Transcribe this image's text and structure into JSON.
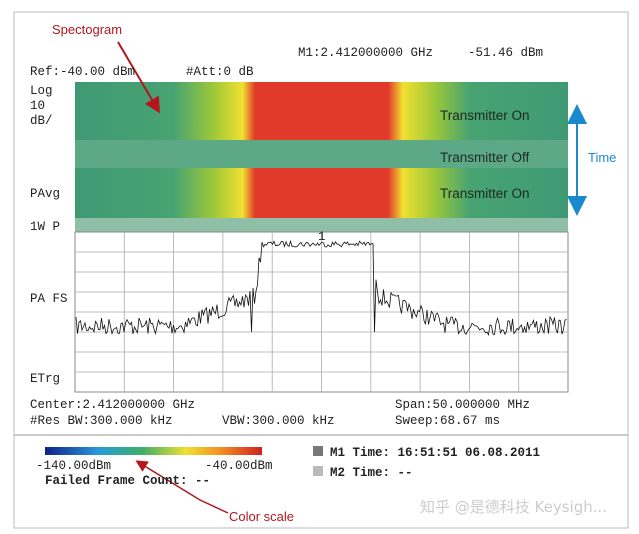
{
  "annotations": {
    "spectrogram": "Spectogram",
    "color_scale": "Color scale",
    "time": "Time"
  },
  "header": {
    "marker": "M1:2.412000000 GHz",
    "marker_level": "-51.46 dBm",
    "ref": "Ref:-40.00 dBm",
    "att": "#Att:0 dB"
  },
  "side_labels": {
    "log": "Log",
    "scale": "10",
    "unit": "dB/",
    "avg": "PAvg",
    "power": "1W P",
    "fs": "PA FS",
    "trigger": "ETrg"
  },
  "spectrogram_labels": [
    "Transmitter On",
    "Transmitter Off",
    "Transmitter On"
  ],
  "marker_number": "1",
  "footer": {
    "center": "Center:2.412000000 GHz",
    "span": "Span:50.000000 MHz",
    "rbw": "#Res BW:300.000 kHz",
    "vbw": "VBW:300.000 kHz",
    "sweep": "Sweep:68.67 ms"
  },
  "color_scale": {
    "min": "-140.00dBm",
    "max": "-40.00dBm",
    "failed": "Failed Frame Count: --"
  },
  "markers": {
    "m1": "M1 Time: 16:51:51 06.08.2011",
    "m2": "M2 Time: --"
  },
  "watermark": "知乎 @是德科技 Keysigh..."
}
